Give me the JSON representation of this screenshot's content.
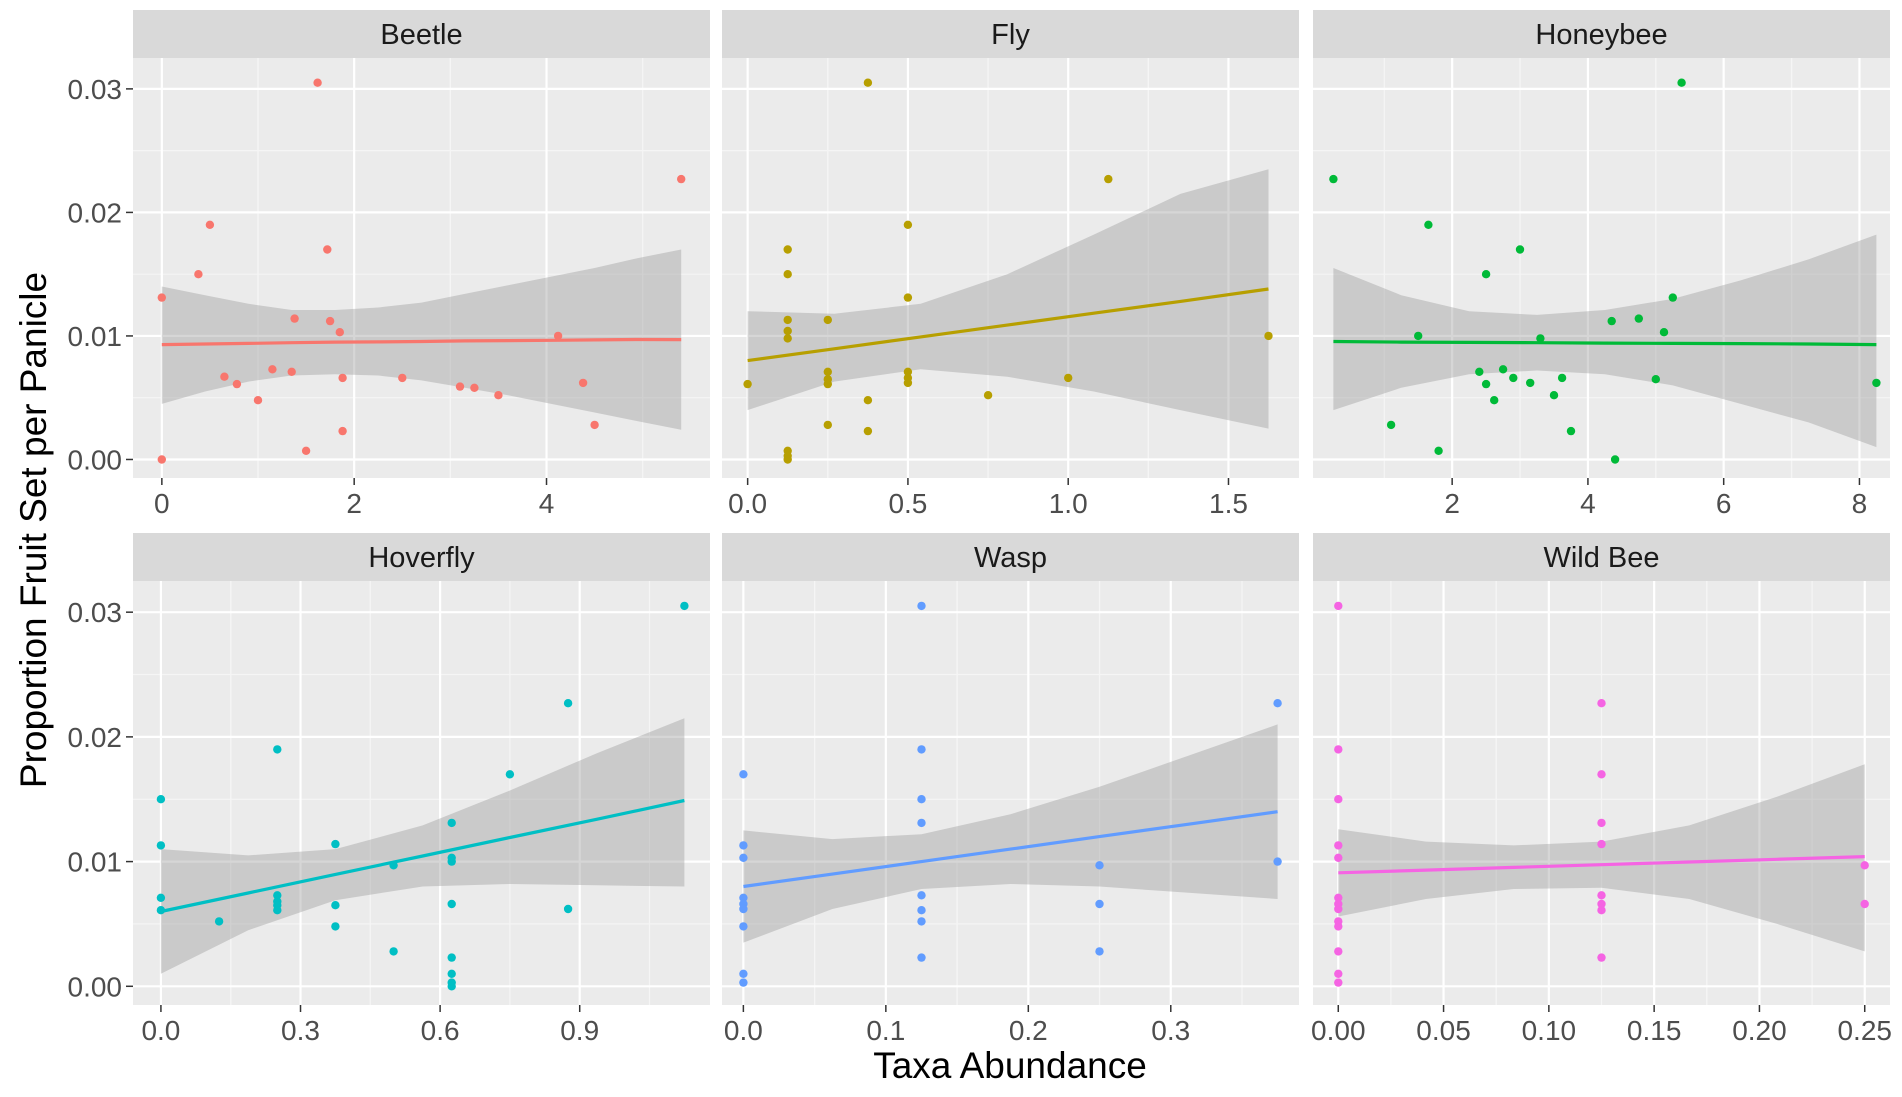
{
  "chart_data": {
    "type": "scatter",
    "layout": "facet-grid-2x3",
    "xlabel": "Taxa Abundance",
    "ylabel": "Proportion Fruit Set per Panicle",
    "ylim": [
      -0.0015,
      0.0325
    ],
    "yticks": [
      0.0,
      0.01,
      0.02,
      0.03
    ],
    "ytick_labels": [
      "0.00",
      "0.01",
      "0.02",
      "0.03"
    ],
    "panels": [
      {
        "name": "Beetle",
        "color": "#F8766D",
        "xlim": [
          -0.3,
          5.7
        ],
        "xticks": [
          0,
          2,
          4
        ],
        "xtick_labels": [
          "0",
          "2",
          "4"
        ],
        "points": [
          [
            0,
            0.0131
          ],
          [
            0,
            0
          ],
          [
            0.38,
            0.015
          ],
          [
            0.5,
            0.019
          ],
          [
            0.65,
            0.0067
          ],
          [
            0.78,
            0.0061
          ],
          [
            1.0,
            0.0048
          ],
          [
            1.15,
            0.0073
          ],
          [
            1.35,
            0.0071
          ],
          [
            1.38,
            0.0114
          ],
          [
            1.5,
            0.0007
          ],
          [
            1.62,
            0.0305
          ],
          [
            1.72,
            0.017
          ],
          [
            1.75,
            0.0112
          ],
          [
            1.85,
            0.0103
          ],
          [
            1.88,
            0.0066
          ],
          [
            1.88,
            0.0023
          ],
          [
            2.5,
            0.0066
          ],
          [
            3.1,
            0.0059
          ],
          [
            3.25,
            0.0058
          ],
          [
            3.5,
            0.0052
          ],
          [
            4.12,
            0.01
          ],
          [
            4.38,
            0.0062
          ],
          [
            4.5,
            0.0028
          ],
          [
            5.4,
            0.0227
          ]
        ],
        "fit": {
          "x": [
            0,
            0.45,
            0.9,
            1.35,
            1.8,
            2.25,
            2.7,
            3.15,
            3.6,
            4.05,
            4.5,
            4.95,
            5.4
          ],
          "y": [
            0.0093,
            0.00935,
            0.0094,
            0.00945,
            0.0095,
            0.00952,
            0.00955,
            0.0096,
            0.00962,
            0.00965,
            0.00968,
            0.00971,
            0.0097
          ],
          "lower": [
            0.0045,
            0.0055,
            0.0063,
            0.0068,
            0.0069,
            0.0068,
            0.0064,
            0.0058,
            0.0052,
            0.0045,
            0.0038,
            0.0031,
            0.0024
          ],
          "upper": [
            0.014,
            0.0133,
            0.0126,
            0.0121,
            0.0121,
            0.0123,
            0.0127,
            0.0134,
            0.0141,
            0.0148,
            0.0155,
            0.0163,
            0.017
          ]
        }
      },
      {
        "name": "Fly",
        "color": "#B79F00",
        "xlim": [
          -0.08,
          1.72
        ],
        "xticks": [
          0,
          0.5,
          1.0,
          1.5
        ],
        "xtick_labels": [
          "0.0",
          "0.5",
          "1.0",
          "1.5"
        ],
        "points": [
          [
            0,
            0.0061
          ],
          [
            0.125,
            0.017
          ],
          [
            0.125,
            0.015
          ],
          [
            0.125,
            0.0113
          ],
          [
            0.125,
            0.0104
          ],
          [
            0.125,
            0.0098
          ],
          [
            0.125,
            0.0007
          ],
          [
            0.125,
            0.0003
          ],
          [
            0.125,
            0
          ],
          [
            0.25,
            0.0113
          ],
          [
            0.25,
            0.0071
          ],
          [
            0.25,
            0.0065
          ],
          [
            0.25,
            0.0061
          ],
          [
            0.25,
            0.0028
          ],
          [
            0.375,
            0.0305
          ],
          [
            0.375,
            0.0048
          ],
          [
            0.375,
            0.0023
          ],
          [
            0.5,
            0.019
          ],
          [
            0.5,
            0.0131
          ],
          [
            0.5,
            0.0071
          ],
          [
            0.5,
            0.0066
          ],
          [
            0.5,
            0.0062
          ],
          [
            0.75,
            0.0052
          ],
          [
            1.0,
            0.0066
          ],
          [
            1.125,
            0.0227
          ],
          [
            1.625,
            0.01
          ]
        ],
        "fit": {
          "x": [
            0,
            0.27,
            0.54,
            0.81,
            1.08,
            1.35,
            1.625
          ],
          "y": [
            0.008,
            0.00896,
            0.00992,
            0.01088,
            0.01184,
            0.0128,
            0.0138
          ],
          "lower": [
            0.004,
            0.0063,
            0.0073,
            0.0067,
            0.0055,
            0.004,
            0.0025
          ],
          "upper": [
            0.012,
            0.0118,
            0.0126,
            0.015,
            0.0182,
            0.0215,
            0.0235
          ]
        }
      },
      {
        "name": "Honeybee",
        "color": "#00BA38",
        "xlim": [
          -0.05,
          8.45
        ],
        "xticks": [
          2,
          4,
          6,
          8
        ],
        "xtick_labels": [
          "2",
          "4",
          "6",
          "8"
        ],
        "points": [
          [
            0.25,
            0.0227
          ],
          [
            1.1,
            0.0028
          ],
          [
            1.5,
            0.01
          ],
          [
            1.65,
            0.019
          ],
          [
            1.8,
            0.0007
          ],
          [
            2.4,
            0.0071
          ],
          [
            2.5,
            0.015
          ],
          [
            2.5,
            0.0061
          ],
          [
            2.62,
            0.0048
          ],
          [
            2.75,
            0.0073
          ],
          [
            2.9,
            0.0066
          ],
          [
            3.0,
            0.017
          ],
          [
            3.15,
            0.0062
          ],
          [
            3.3,
            0.0098
          ],
          [
            3.5,
            0.0052
          ],
          [
            3.62,
            0.0066
          ],
          [
            3.75,
            0.0023
          ],
          [
            4.35,
            0.0112
          ],
          [
            4.4,
            0
          ],
          [
            4.75,
            0.0114
          ],
          [
            5.0,
            0.0065
          ],
          [
            5.12,
            0.0103
          ],
          [
            5.25,
            0.0131
          ],
          [
            5.38,
            0.0305
          ],
          [
            8.25,
            0.0062
          ]
        ],
        "fit": {
          "x": [
            0.25,
            1.25,
            2.25,
            3.25,
            4.25,
            5.25,
            6.25,
            7.25,
            8.25
          ],
          "y": [
            0.00955,
            0.0095,
            0.00948,
            0.00945,
            0.00942,
            0.0094,
            0.00938,
            0.00935,
            0.0093
          ],
          "lower": [
            0.004,
            0.0058,
            0.0069,
            0.0072,
            0.0069,
            0.006,
            0.0045,
            0.003,
            0.001
          ],
          "upper": [
            0.0155,
            0.0133,
            0.012,
            0.0117,
            0.0121,
            0.013,
            0.0145,
            0.0162,
            0.0182
          ]
        }
      },
      {
        "name": "Hoverfly",
        "color": "#00BFC4",
        "xlim": [
          -0.06,
          1.18
        ],
        "xticks": [
          0.0,
          0.3,
          0.6,
          0.9
        ],
        "xtick_labels": [
          "0.0",
          "0.3",
          "0.6",
          "0.9"
        ],
        "points": [
          [
            0,
            0.015
          ],
          [
            0,
            0.0113
          ],
          [
            0,
            0.0071
          ],
          [
            0,
            0.0061
          ],
          [
            0.125,
            0.0052
          ],
          [
            0.25,
            0.019
          ],
          [
            0.25,
            0.0073
          ],
          [
            0.25,
            0.0068
          ],
          [
            0.25,
            0.0065
          ],
          [
            0.25,
            0.0061
          ],
          [
            0.375,
            0.0114
          ],
          [
            0.375,
            0.0065
          ],
          [
            0.375,
            0.0048
          ],
          [
            0.5,
            0.0097
          ],
          [
            0.5,
            0.0028
          ],
          [
            0.625,
            0.0131
          ],
          [
            0.625,
            0.0103
          ],
          [
            0.625,
            0.01
          ],
          [
            0.625,
            0.0066
          ],
          [
            0.625,
            0.0023
          ],
          [
            0.625,
            0.001
          ],
          [
            0.625,
            0.0003
          ],
          [
            0.625,
            0
          ],
          [
            0.75,
            0.017
          ],
          [
            0.875,
            0.0227
          ],
          [
            0.875,
            0.0062
          ],
          [
            1.125,
            0.0305
          ]
        ],
        "fit": {
          "x": [
            0,
            0.1875,
            0.375,
            0.5625,
            0.75,
            0.9375,
            1.125
          ],
          "y": [
            0.006,
            0.00748,
            0.00897,
            0.01045,
            0.01193,
            0.0134,
            0.0149
          ],
          "lower": [
            0.001,
            0.0045,
            0.0069,
            0.008,
            0.0082,
            0.0081,
            0.008
          ],
          "upper": [
            0.011,
            0.0105,
            0.011,
            0.0129,
            0.0157,
            0.0187,
            0.0215
          ]
        }
      },
      {
        "name": "Wasp",
        "color": "#619CFF",
        "xlim": [
          -0.015,
          0.39
        ],
        "xticks": [
          0.0,
          0.1,
          0.2,
          0.3
        ],
        "xtick_labels": [
          "0.0",
          "0.1",
          "0.2",
          "0.3"
        ],
        "points": [
          [
            0,
            0.017
          ],
          [
            0,
            0.0113
          ],
          [
            0,
            0.0103
          ],
          [
            0,
            0.0071
          ],
          [
            0,
            0.0066
          ],
          [
            0,
            0.0062
          ],
          [
            0,
            0.0048
          ],
          [
            0,
            0.001
          ],
          [
            0,
            0.0003
          ],
          [
            0.125,
            0.0305
          ],
          [
            0.125,
            0.019
          ],
          [
            0.125,
            0.015
          ],
          [
            0.125,
            0.0131
          ],
          [
            0.125,
            0.0073
          ],
          [
            0.125,
            0.0061
          ],
          [
            0.125,
            0.0052
          ],
          [
            0.125,
            0.0023
          ],
          [
            0.25,
            0.0097
          ],
          [
            0.25,
            0.0066
          ],
          [
            0.25,
            0.0028
          ],
          [
            0.375,
            0.0227
          ],
          [
            0.375,
            0.01
          ]
        ],
        "fit": {
          "x": [
            0,
            0.0625,
            0.125,
            0.1875,
            0.25,
            0.3125,
            0.375
          ],
          "y": [
            0.008,
            0.009,
            0.01,
            0.011,
            0.012,
            0.013,
            0.014
          ],
          "lower": [
            0.0035,
            0.0062,
            0.0078,
            0.0082,
            0.008,
            0.0075,
            0.007
          ],
          "upper": [
            0.0125,
            0.0118,
            0.0122,
            0.0138,
            0.016,
            0.0185,
            0.021
          ]
        }
      },
      {
        "name": "Wild Bee",
        "color": "#F564E3",
        "xlim": [
          -0.012,
          0.262
        ],
        "xticks": [
          0.0,
          0.05,
          0.1,
          0.15,
          0.2,
          0.25
        ],
        "xtick_labels": [
          "0.00",
          "0.05",
          "0.10",
          "0.15",
          "0.20",
          "0.25"
        ],
        "points": [
          [
            0,
            0.0305
          ],
          [
            0,
            0.019
          ],
          [
            0,
            0.015
          ],
          [
            0,
            0.0113
          ],
          [
            0,
            0.0103
          ],
          [
            0,
            0.0071
          ],
          [
            0,
            0.0066
          ],
          [
            0,
            0.0062
          ],
          [
            0,
            0.0052
          ],
          [
            0,
            0.0048
          ],
          [
            0,
            0.0028
          ],
          [
            0,
            0.001
          ],
          [
            0,
            0.0003
          ],
          [
            0.125,
            0.0227
          ],
          [
            0.125,
            0.017
          ],
          [
            0.125,
            0.0131
          ],
          [
            0.125,
            0.0114
          ],
          [
            0.125,
            0.0073
          ],
          [
            0.125,
            0.0066
          ],
          [
            0.125,
            0.0061
          ],
          [
            0.125,
            0.0023
          ],
          [
            0.25,
            0.0097
          ],
          [
            0.25,
            0.0066
          ]
        ],
        "fit": {
          "x": [
            0,
            0.04167,
            0.08333,
            0.125,
            0.16667,
            0.20833,
            0.25
          ],
          "y": [
            0.0091,
            0.00932,
            0.00953,
            0.00975,
            0.00997,
            0.01018,
            0.0104
          ],
          "lower": [
            0.0056,
            0.007,
            0.0078,
            0.0079,
            0.007,
            0.005,
            0.0028
          ],
          "upper": [
            0.0126,
            0.0116,
            0.0113,
            0.0116,
            0.0129,
            0.0152,
            0.0178
          ]
        }
      }
    ]
  }
}
